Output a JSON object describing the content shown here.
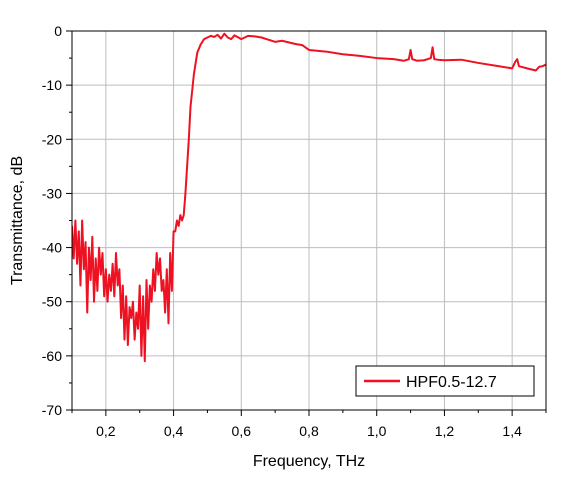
{
  "chart_data": {
    "type": "line",
    "xlabel": "Frequency, THz",
    "ylabel": "Transmittance, dB",
    "xlim": [
      0.1,
      1.5
    ],
    "ylim": [
      -70,
      0
    ],
    "x_ticks": [
      0.2,
      0.4,
      0.6,
      0.8,
      1.0,
      1.2,
      1.4
    ],
    "x_tick_labels": [
      "0,2",
      "0,4",
      "0,6",
      "0,8",
      "1,0",
      "1,2",
      "1,4"
    ],
    "y_ticks": [
      0,
      -10,
      -20,
      -30,
      -40,
      -50,
      -60,
      -70
    ],
    "y_tick_labels": [
      "0",
      "-10",
      "-20",
      "-30",
      "-40",
      "-50",
      "-60",
      "-70"
    ],
    "grid": true,
    "legend_position": "bottom-right",
    "series": [
      {
        "name": "HPF0.5-12.7",
        "color": "#ee1122",
        "x": [
          0.1,
          0.105,
          0.11,
          0.115,
          0.12,
          0.125,
          0.13,
          0.135,
          0.14,
          0.145,
          0.15,
          0.155,
          0.16,
          0.165,
          0.17,
          0.175,
          0.18,
          0.185,
          0.19,
          0.195,
          0.2,
          0.205,
          0.21,
          0.215,
          0.22,
          0.225,
          0.23,
          0.235,
          0.24,
          0.245,
          0.25,
          0.255,
          0.26,
          0.265,
          0.27,
          0.275,
          0.28,
          0.285,
          0.29,
          0.295,
          0.3,
          0.305,
          0.31,
          0.315,
          0.32,
          0.325,
          0.33,
          0.335,
          0.34,
          0.345,
          0.35,
          0.355,
          0.36,
          0.365,
          0.37,
          0.375,
          0.38,
          0.385,
          0.39,
          0.395,
          0.4,
          0.405,
          0.41,
          0.415,
          0.42,
          0.425,
          0.43,
          0.435,
          0.44,
          0.445,
          0.45,
          0.46,
          0.47,
          0.48,
          0.49,
          0.5,
          0.51,
          0.52,
          0.53,
          0.54,
          0.55,
          0.56,
          0.57,
          0.58,
          0.6,
          0.62,
          0.64,
          0.66,
          0.68,
          0.7,
          0.72,
          0.74,
          0.76,
          0.78,
          0.8,
          0.85,
          0.9,
          0.95,
          1.0,
          1.05,
          1.08,
          1.095,
          1.1,
          1.105,
          1.12,
          1.14,
          1.16,
          1.165,
          1.17,
          1.18,
          1.2,
          1.25,
          1.3,
          1.35,
          1.4,
          1.41,
          1.415,
          1.42,
          1.45,
          1.47,
          1.48,
          1.49,
          1.5
        ],
        "y": [
          -36,
          -42,
          -35,
          -43,
          -37,
          -47,
          -35,
          -44,
          -39,
          -52,
          -40,
          -46,
          -38,
          -50,
          -42,
          -48,
          -40,
          -45,
          -41,
          -49,
          -44,
          -50,
          -45,
          -48,
          -43,
          -49,
          -41,
          -47,
          -44,
          -53,
          -47,
          -57,
          -49,
          -58,
          -51,
          -53,
          -50,
          -57,
          -52,
          -55,
          -47,
          -60,
          -49,
          -61,
          -46,
          -55,
          -47,
          -50,
          -44,
          -48,
          -41,
          -45,
          -42,
          -48,
          -46,
          -52,
          -44,
          -54,
          -41,
          -48,
          -37,
          -37,
          -35,
          -36,
          -34,
          -35,
          -34,
          -30,
          -25,
          -20,
          -14,
          -8,
          -4,
          -2.5,
          -1.5,
          -1.2,
          -0.9,
          -1.1,
          -0.7,
          -1.4,
          -0.5,
          -1.2,
          -1.5,
          -0.8,
          -1.5,
          -0.9,
          -1.0,
          -1.2,
          -1.6,
          -2.0,
          -1.8,
          -2.1,
          -2.4,
          -2.6,
          -3.5,
          -3.8,
          -4.3,
          -4.6,
          -5.0,
          -5.2,
          -5.5,
          -5.2,
          -3.5,
          -5.2,
          -5.5,
          -5.4,
          -5.0,
          -3.0,
          -5.2,
          -5.3,
          -5.4,
          -5.3,
          -5.9,
          -6.4,
          -6.9,
          -5.6,
          -5.2,
          -6.5,
          -7.0,
          -7.3,
          -6.6,
          -6.5,
          -6.2
        ]
      }
    ]
  }
}
